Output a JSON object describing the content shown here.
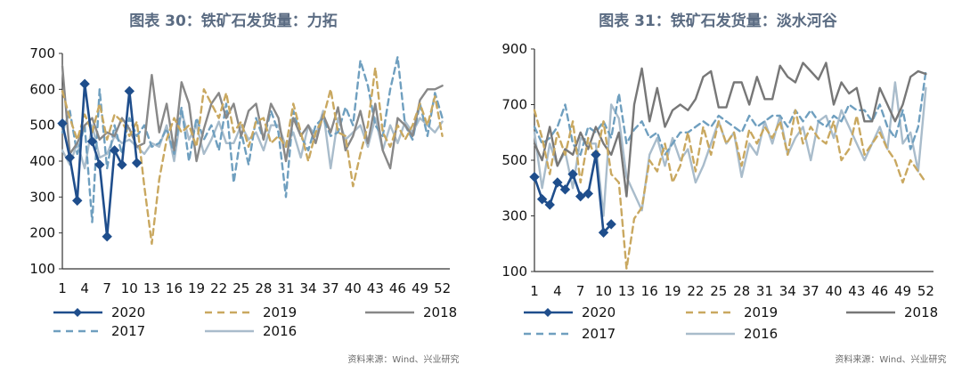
{
  "chart_data": [
    {
      "type": "line",
      "title": "图表 30：铁矿石发货量：力拓",
      "xlabel": "",
      "ylabel": "",
      "ylim": [
        100,
        700
      ],
      "yticks": [
        100,
        200,
        300,
        400,
        500,
        600,
        700
      ],
      "xticks": [
        1,
        4,
        7,
        10,
        13,
        16,
        19,
        22,
        25,
        28,
        31,
        34,
        37,
        40,
        43,
        46,
        49,
        52
      ],
      "xlim": [
        1,
        53
      ],
      "legend": "bottom",
      "source": "资料来源：Wind、兴业研究",
      "series": [
        {
          "name": "2020",
          "style": "solid-marker",
          "color": "#1f4e8c",
          "x": [
            1,
            2,
            3,
            4,
            5,
            6,
            7,
            8,
            9,
            10,
            11
          ],
          "y": [
            505,
            410,
            290,
            615,
            455,
            390,
            190,
            430,
            390,
            595,
            395
          ]
        },
        {
          "name": "2019",
          "style": "dash",
          "color": "#c9a860",
          "x": [
            1,
            2,
            3,
            4,
            5,
            6,
            7,
            8,
            9,
            10,
            11,
            12,
            13,
            14,
            15,
            16,
            17,
            18,
            19,
            20,
            21,
            22,
            23,
            24,
            25,
            26,
            27,
            28,
            29,
            30,
            31,
            32,
            33,
            34,
            35,
            36,
            37,
            38,
            39,
            40,
            41,
            42,
            43,
            44,
            45,
            46,
            47,
            48,
            49,
            50,
            51,
            52
          ],
          "y": [
            595,
            520,
            460,
            530,
            480,
            560,
            460,
            530,
            510,
            470,
            510,
            330,
            170,
            350,
            460,
            520,
            480,
            500,
            440,
            600,
            560,
            520,
            590,
            480,
            510,
            440,
            510,
            520,
            450,
            470,
            440,
            560,
            480,
            400,
            480,
            520,
            600,
            480,
            470,
            330,
            420,
            500,
            660,
            480,
            440,
            500,
            460,
            500,
            560,
            500,
            580,
            470
          ]
        },
        {
          "name": "2018",
          "style": "solid",
          "color": "#888888",
          "x": [
            1,
            2,
            3,
            4,
            5,
            6,
            7,
            8,
            9,
            10,
            11,
            12,
            13,
            14,
            15,
            16,
            17,
            18,
            19,
            20,
            21,
            22,
            23,
            24,
            25,
            26,
            27,
            28,
            29,
            30,
            31,
            32,
            33,
            34,
            35,
            36,
            37,
            38,
            39,
            40,
            41,
            42,
            43,
            44,
            45,
            46,
            47,
            48,
            49,
            50,
            51,
            52
          ],
          "y": [
            665,
            420,
            450,
            500,
            520,
            460,
            480,
            470,
            520,
            490,
            440,
            450,
            640,
            480,
            560,
            430,
            620,
            560,
            400,
            490,
            560,
            590,
            520,
            560,
            470,
            540,
            560,
            460,
            560,
            520,
            400,
            520,
            470,
            500,
            450,
            530,
            480,
            550,
            430,
            470,
            540,
            450,
            560,
            430,
            380,
            520,
            500,
            470,
            570,
            600,
            600,
            610
          ]
        },
        {
          "name": "2017",
          "style": "dash",
          "color": "#6f9fbf",
          "x": [
            1,
            2,
            3,
            4,
            5,
            6,
            7,
            8,
            9,
            10,
            11,
            12,
            13,
            14,
            15,
            16,
            17,
            18,
            19,
            20,
            21,
            22,
            23,
            24,
            25,
            26,
            27,
            28,
            29,
            30,
            31,
            32,
            33,
            34,
            35,
            36,
            37,
            38,
            39,
            40,
            41,
            42,
            43,
            44,
            45,
            46,
            47,
            48,
            49,
            50,
            51,
            52
          ],
          "y": [
            480,
            540,
            420,
            500,
            230,
            600,
            380,
            500,
            420,
            520,
            470,
            500,
            440,
            450,
            490,
            420,
            550,
            400,
            520,
            460,
            500,
            430,
            560,
            340,
            480,
            390,
            520,
            460,
            540,
            480,
            300,
            540,
            470,
            430,
            500,
            520,
            470,
            480,
            550,
            500,
            680,
            610,
            500,
            470,
            600,
            690,
            500,
            460,
            560,
            470,
            590,
            520
          ]
        },
        {
          "name": "2016",
          "style": "solid",
          "color": "#a9bccb",
          "x": [
            1,
            2,
            3,
            4,
            5,
            6,
            7,
            8,
            9,
            10,
            11,
            12,
            13,
            14,
            15,
            16,
            17,
            18,
            19,
            20,
            21,
            22,
            23,
            24,
            25,
            26,
            27,
            28,
            29,
            30,
            31,
            32,
            33,
            34,
            35,
            36,
            37,
            38,
            39,
            40,
            41,
            42,
            43,
            44,
            45,
            46,
            47,
            48,
            49,
            50,
            51,
            52
          ],
          "y": [
            430,
            390,
            450,
            380,
            500,
            410,
            420,
            470,
            450,
            460,
            440,
            420,
            450,
            440,
            500,
            400,
            540,
            460,
            500,
            420,
            460,
            510,
            450,
            450,
            500,
            460,
            480,
            430,
            500,
            500,
            440,
            480,
            410,
            500,
            470,
            540,
            380,
            520,
            460,
            480,
            500,
            440,
            520,
            430,
            500,
            450,
            510,
            480,
            520,
            500,
            480,
            510
          ]
        }
      ]
    },
    {
      "type": "line",
      "title": "图表 31：铁矿石发货量：淡水河谷",
      "xlabel": "",
      "ylabel": "",
      "ylim": [
        100,
        900
      ],
      "yticks": [
        100,
        300,
        500,
        700,
        900
      ],
      "xticks": [
        1,
        4,
        7,
        10,
        13,
        16,
        19,
        22,
        25,
        28,
        31,
        34,
        37,
        40,
        43,
        46,
        49,
        52
      ],
      "xlim": [
        1,
        53
      ],
      "legend": "bottom",
      "source": "资料来源：Wind、兴业研究",
      "series": [
        {
          "name": "2020",
          "style": "solid-marker",
          "color": "#1f4e8c",
          "x": [
            1,
            2,
            3,
            4,
            5,
            6,
            7,
            8,
            9,
            10,
            11
          ],
          "y": [
            440,
            360,
            340,
            420,
            395,
            450,
            370,
            380,
            520,
            240,
            270
          ]
        },
        {
          "name": "2019",
          "style": "dash",
          "color": "#c9a860",
          "x": [
            1,
            2,
            3,
            4,
            5,
            6,
            7,
            8,
            9,
            10,
            11,
            12,
            13,
            14,
            15,
            16,
            17,
            18,
            19,
            20,
            21,
            22,
            23,
            24,
            25,
            26,
            27,
            28,
            29,
            30,
            31,
            32,
            33,
            34,
            35,
            36,
            37,
            38,
            39,
            40,
            41,
            42,
            43,
            44,
            45,
            46,
            47,
            48,
            49,
            50,
            51,
            52
          ],
          "y": [
            680,
            580,
            450,
            600,
            520,
            640,
            420,
            580,
            500,
            640,
            450,
            420,
            110,
            290,
            330,
            500,
            460,
            560,
            420,
            480,
            600,
            460,
            620,
            520,
            640,
            560,
            600,
            480,
            610,
            560,
            620,
            580,
            640,
            520,
            680,
            560,
            620,
            580,
            560,
            640,
            500,
            540,
            660,
            520,
            560,
            600,
            540,
            500,
            420,
            500,
            460,
            420
          ]
        },
        {
          "name": "2018",
          "style": "solid",
          "color": "#777777",
          "x": [
            1,
            2,
            3,
            4,
            5,
            6,
            7,
            8,
            9,
            10,
            11,
            12,
            13,
            14,
            15,
            16,
            17,
            18,
            19,
            20,
            21,
            22,
            23,
            24,
            25,
            26,
            27,
            28,
            29,
            30,
            31,
            32,
            33,
            34,
            35,
            36,
            37,
            38,
            39,
            40,
            41,
            42,
            43,
            44,
            45,
            46,
            47,
            48,
            49,
            50,
            51,
            52
          ],
          "y": [
            560,
            500,
            620,
            480,
            540,
            520,
            600,
            540,
            620,
            560,
            520,
            600,
            370,
            700,
            830,
            640,
            760,
            620,
            680,
            700,
            680,
            720,
            800,
            820,
            690,
            690,
            780,
            780,
            700,
            800,
            720,
            720,
            840,
            800,
            780,
            850,
            820,
            790,
            850,
            700,
            780,
            740,
            760,
            640,
            640,
            760,
            700,
            640,
            700,
            800,
            820,
            810
          ]
        },
        {
          "name": "2017",
          "style": "dash",
          "color": "#6f9fbf",
          "x": [
            1,
            2,
            3,
            4,
            5,
            6,
            7,
            8,
            9,
            10,
            11,
            12,
            13,
            14,
            15,
            16,
            17,
            18,
            19,
            20,
            21,
            22,
            23,
            24,
            25,
            26,
            27,
            28,
            29,
            30,
            31,
            32,
            33,
            34,
            35,
            36,
            37,
            38,
            39,
            40,
            41,
            42,
            43,
            44,
            45,
            46,
            47,
            48,
            49,
            50,
            51,
            52
          ],
          "y": [
            620,
            560,
            580,
            620,
            700,
            560,
            520,
            620,
            600,
            640,
            580,
            740,
            560,
            610,
            640,
            580,
            600,
            520,
            560,
            600,
            600,
            620,
            640,
            620,
            660,
            640,
            620,
            600,
            660,
            620,
            640,
            660,
            660,
            620,
            680,
            640,
            680,
            640,
            620,
            660,
            640,
            700,
            680,
            680,
            640,
            700,
            620,
            580,
            680,
            540,
            620,
            820
          ]
        },
        {
          "name": "2016",
          "style": "solid",
          "color": "#a9bccb",
          "x": [
            1,
            2,
            3,
            4,
            5,
            6,
            7,
            8,
            9,
            10,
            11,
            12,
            13,
            14,
            15,
            16,
            17,
            18,
            19,
            20,
            21,
            22,
            23,
            24,
            25,
            26,
            27,
            28,
            29,
            30,
            31,
            32,
            33,
            34,
            35,
            36,
            37,
            38,
            39,
            40,
            41,
            42,
            43,
            44,
            45,
            46,
            47,
            48,
            49,
            50,
            51,
            52
          ],
          "y": [
            600,
            400,
            560,
            480,
            530,
            400,
            580,
            560,
            560,
            300,
            700,
            650,
            440,
            380,
            320,
            520,
            580,
            480,
            580,
            500,
            540,
            420,
            480,
            560,
            640,
            560,
            600,
            440,
            560,
            520,
            640,
            560,
            660,
            520,
            580,
            620,
            500,
            640,
            660,
            580,
            680,
            620,
            560,
            500,
            560,
            620,
            540,
            780,
            560,
            600,
            460,
            760
          ]
        }
      ]
    }
  ]
}
